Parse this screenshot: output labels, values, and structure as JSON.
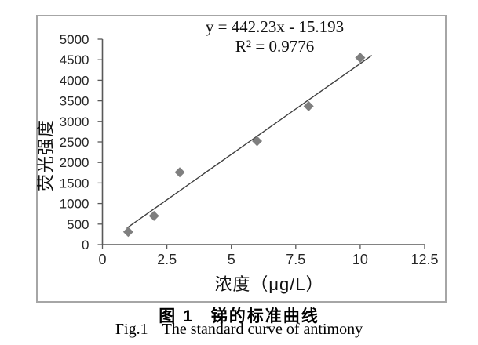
{
  "figure": {
    "caption_zh": {
      "label": "图 1",
      "title": "锑的标准曲线"
    },
    "caption_en": {
      "label": "Fig.1",
      "title": "The standard curve of antimony"
    }
  },
  "chart_data": {
    "type": "scatter",
    "title": "",
    "annotation": {
      "equation": "y = 442.23x - 15.193",
      "r_squared": "R² = 0.9776"
    },
    "xlabel": "浓度（μg/L）",
    "ylabel": "荧光强度",
    "xlim": [
      0,
      12.5
    ],
    "ylim": [
      0,
      5000
    ],
    "x_ticks": [
      0,
      2.5,
      5,
      7.5,
      10,
      12.5
    ],
    "y_ticks": [
      0,
      500,
      1000,
      1500,
      2000,
      2500,
      3000,
      3500,
      4000,
      4500,
      5000
    ],
    "grid": false,
    "legend": "none",
    "series": [
      {
        "name": "antimony-standard-points",
        "marker": "diamond",
        "points": [
          {
            "x": 1,
            "y": 310
          },
          {
            "x": 2,
            "y": 700
          },
          {
            "x": 3,
            "y": 1760
          },
          {
            "x": 6,
            "y": 2520
          },
          {
            "x": 8,
            "y": 3370
          },
          {
            "x": 10,
            "y": 4550
          }
        ]
      }
    ],
    "trendline": {
      "slope": 442.23,
      "intercept": -15.193,
      "x_start": 0.95,
      "x_end": 10.45
    }
  },
  "colors": {
    "frame": "#a6a6a6",
    "axis": "#595959",
    "tick_text": "#262626",
    "marker": "#7f7f7f",
    "trend": "#3f3f3f"
  }
}
